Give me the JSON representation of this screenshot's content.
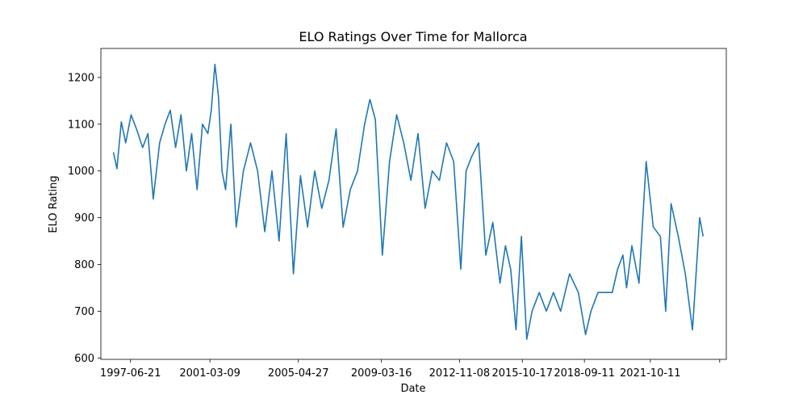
{
  "chart_data": {
    "type": "line",
    "title": "ELO Ratings Over Time for Mallorca",
    "xlabel": "Date",
    "ylabel": "ELO Rating",
    "xlim": [
      "1996-02-01",
      "2025-05-01"
    ],
    "ylim": [
      597,
      1262
    ],
    "grid": false,
    "x_ticks": [
      "1997-06-21",
      "2001-03-09",
      "2005-04-27",
      "2009-03-16",
      "2012-11-08",
      "2015-10-17",
      "2018-09-11",
      "2021-10-11",
      ""
    ],
    "y_ticks": [
      600,
      700,
      800,
      900,
      1000,
      1100,
      1200
    ],
    "series": [
      {
        "color": "#1f77b4",
        "x": [
          "1996-09-01",
          "1996-11-01",
          "1997-01-15",
          "1997-04-01",
          "1997-07-01",
          "1997-10-01",
          "1998-01-15",
          "1998-04-15",
          "1998-07-15",
          "1998-11-01",
          "1999-02-01",
          "1999-05-01",
          "1999-08-01",
          "1999-11-01",
          "2000-02-01",
          "2000-05-01",
          "2000-08-01",
          "2000-11-01",
          "2001-02-01",
          "2001-04-01",
          "2001-06-01",
          "2001-08-01",
          "2001-10-01",
          "2001-12-01",
          "2002-03-01",
          "2002-06-01",
          "2002-10-01",
          "2003-02-01",
          "2003-06-01",
          "2003-10-01",
          "2004-02-01",
          "2004-06-01",
          "2004-10-01",
          "2005-02-01",
          "2005-06-01",
          "2005-10-01",
          "2006-02-01",
          "2006-06-01",
          "2006-10-01",
          "2007-02-01",
          "2007-06-01",
          "2007-10-01",
          "2008-02-01",
          "2008-06-01",
          "2008-09-01",
          "2008-12-01",
          "2009-04-01",
          "2009-08-01",
          "2009-12-01",
          "2010-04-01",
          "2010-08-01",
          "2010-12-01",
          "2011-04-01",
          "2011-08-01",
          "2011-12-01",
          "2012-04-01",
          "2012-08-01",
          "2012-12-01",
          "2013-03-01",
          "2013-06-01",
          "2013-10-01",
          "2014-02-01",
          "2014-06-01",
          "2014-10-01",
          "2015-01-01",
          "2015-04-01",
          "2015-07-01",
          "2015-10-01",
          "2016-01-01",
          "2016-04-01",
          "2016-08-01",
          "2016-12-01",
          "2017-04-01",
          "2017-08-01",
          "2018-01-01",
          "2018-06-01",
          "2018-10-01",
          "2019-01-01",
          "2019-05-01",
          "2019-09-01",
          "2020-01-01",
          "2020-04-01",
          "2020-07-01",
          "2020-09-01",
          "2020-12-01",
          "2021-04-01",
          "2021-08-01",
          "2021-12-01",
          "2022-04-01",
          "2022-07-01",
          "2022-10-01",
          "2023-02-01",
          "2023-06-01",
          "2023-10-01",
          "2024-02-01",
          "2024-04-01"
        ],
        "y": [
          1040,
          1005,
          1105,
          1060,
          1120,
          1090,
          1050,
          1080,
          940,
          1060,
          1100,
          1130,
          1050,
          1120,
          1000,
          1080,
          960,
          1100,
          1080,
          1130,
          1228,
          1160,
          1000,
          960,
          1100,
          880,
          1000,
          1060,
          1000,
          870,
          1000,
          850,
          1080,
          780,
          990,
          880,
          1000,
          920,
          980,
          1090,
          880,
          960,
          1000,
          1100,
          1153,
          1110,
          820,
          1020,
          1120,
          1060,
          980,
          1080,
          920,
          1000,
          980,
          1060,
          1020,
          790,
          1000,
          1030,
          1060,
          820,
          890,
          760,
          840,
          790,
          660,
          860,
          640,
          700,
          740,
          700,
          740,
          700,
          780,
          740,
          650,
          700,
          740,
          740,
          740,
          790,
          820,
          750,
          840,
          760,
          1020,
          880,
          860,
          700,
          930,
          860,
          780,
          660,
          900,
          860
        ]
      }
    ]
  }
}
